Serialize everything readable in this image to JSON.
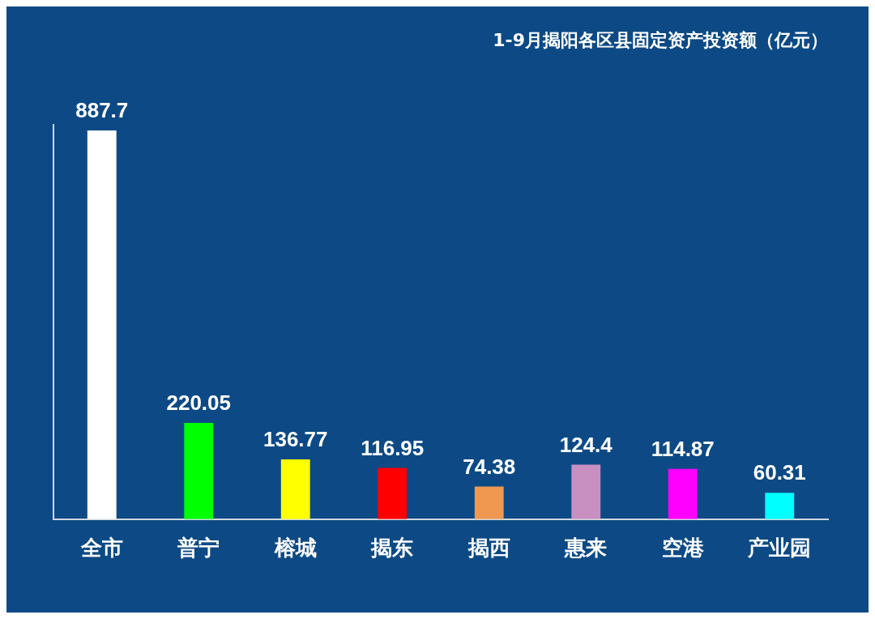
{
  "chart_data": {
    "type": "bar",
    "title": "1-9月揭阳各区县固定资产投资额（亿元）",
    "categories": [
      "全市",
      "普宁",
      "榕城",
      "揭东",
      "揭西",
      "惠来",
      "空港",
      "产业园"
    ],
    "values": [
      887.7,
      220.05,
      136.77,
      116.95,
      74.38,
      124.4,
      114.87,
      60.31
    ],
    "colors": [
      "#ffffff",
      "#00ff00",
      "#ffff00",
      "#ff0000",
      "#f09850",
      "#c890c0",
      "#ff00ff",
      "#00ffff"
    ],
    "data_labels": true,
    "grid": false,
    "legend": false
  }
}
